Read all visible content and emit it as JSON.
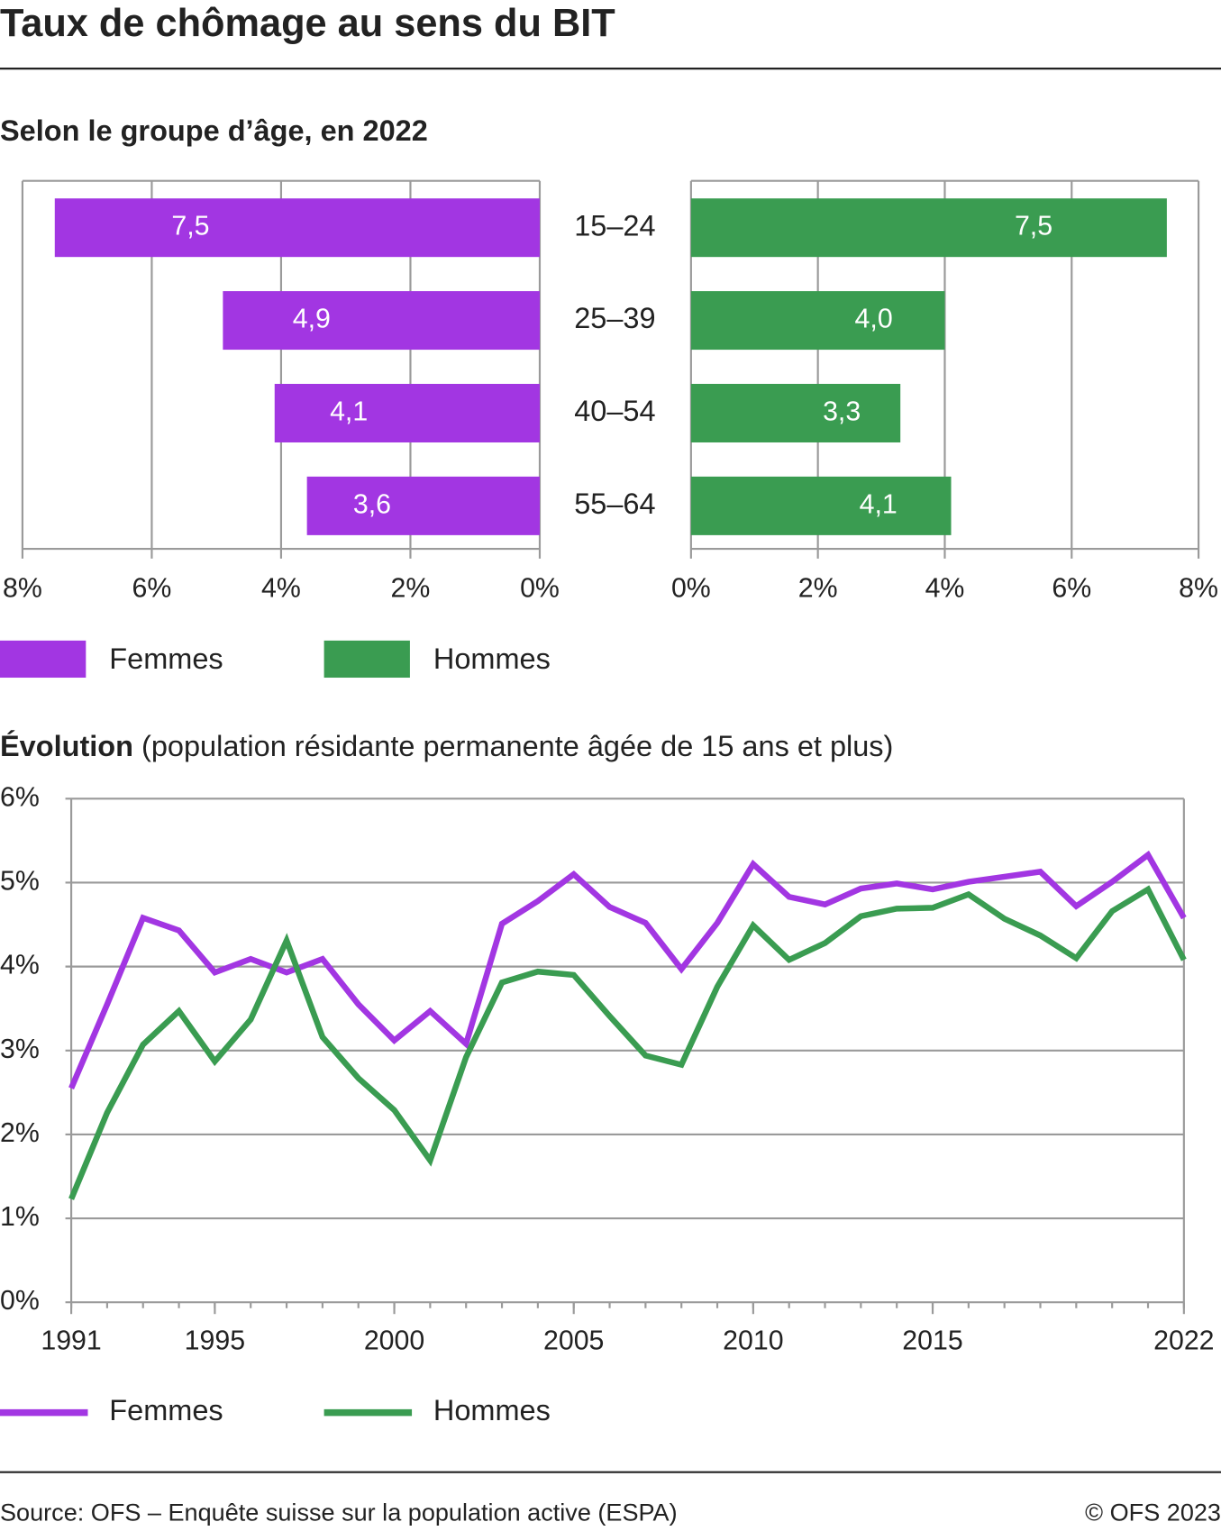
{
  "header": {
    "title": "Taux de chômage au sens du BIT"
  },
  "chart_data": [
    {
      "type": "butterfly-bar",
      "subtitle": "Selon le groupe d’âge, en 2022",
      "categories": [
        "15–24",
        "25–39",
        "40–54",
        "55–64"
      ],
      "series": [
        {
          "name": "Femmes",
          "color": "#a236e2",
          "values": [
            7.5,
            4.9,
            4.1,
            3.6
          ],
          "value_labels": [
            "7,5",
            "4,9",
            "4,1",
            "3,6"
          ]
        },
        {
          "name": "Hommes",
          "color": "#3a9c51",
          "values": [
            7.5,
            4.0,
            3.3,
            4.1
          ],
          "value_labels": [
            "7,5",
            "4,0",
            "3,3",
            "4,1"
          ]
        }
      ],
      "xlim": [
        0,
        8
      ],
      "xticks": [
        {
          "value": 0,
          "label": "0%"
        },
        {
          "value": 2,
          "label": "2%"
        },
        {
          "value": 4,
          "label": "4%"
        },
        {
          "value": 6,
          "label": "6%"
        },
        {
          "value": 8,
          "label": "8%"
        }
      ],
      "grid": true
    },
    {
      "type": "line",
      "title": "Évolution",
      "subtitle": "(population résidante permanente âgée de 15 ans et plus)",
      "x": [
        1991,
        1992,
        1993,
        1994,
        1995,
        1996,
        1997,
        1998,
        1999,
        2000,
        2001,
        2002,
        2003,
        2004,
        2005,
        2006,
        2007,
        2008,
        2009,
        2010,
        2011,
        2012,
        2013,
        2014,
        2015,
        2016,
        2017,
        2018,
        2019,
        2020,
        2021,
        2022
      ],
      "series": [
        {
          "name": "Femmes",
          "color": "#a236e2",
          "values": [
            2.55,
            3.55,
            4.58,
            4.43,
            3.93,
            4.09,
            3.93,
            4.09,
            3.55,
            3.12,
            3.47,
            3.08,
            4.51,
            4.78,
            5.1,
            4.71,
            4.52,
            3.97,
            4.52,
            5.22,
            4.83,
            4.74,
            4.93,
            4.99,
            4.92,
            5.01,
            5.07,
            5.13,
            4.72,
            5.01,
            5.33,
            4.58
          ]
        },
        {
          "name": "Hommes",
          "color": "#3a9c51",
          "values": [
            1.23,
            2.26,
            3.07,
            3.47,
            2.87,
            3.37,
            4.31,
            3.16,
            2.67,
            2.29,
            1.69,
            2.92,
            3.81,
            3.94,
            3.9,
            3.41,
            2.94,
            2.83,
            3.76,
            4.49,
            4.08,
            4.28,
            4.6,
            4.69,
            4.7,
            4.86,
            4.57,
            4.37,
            4.1,
            4.66,
            4.92,
            4.08
          ]
        }
      ],
      "xlim": [
        1991,
        2022
      ],
      "xticks": [
        1991,
        1995,
        2000,
        2005,
        2010,
        2015,
        2022
      ],
      "ylim": [
        0,
        6
      ],
      "yticks": [
        {
          "value": 0,
          "label": "0%"
        },
        {
          "value": 1,
          "label": "1%"
        },
        {
          "value": 2,
          "label": "2%"
        },
        {
          "value": 3,
          "label": "3%"
        },
        {
          "value": 4,
          "label": "4%"
        },
        {
          "value": 5,
          "label": "5%"
        },
        {
          "value": 6,
          "label": "6%"
        }
      ],
      "grid": true
    }
  ],
  "footer": {
    "source": "Source: OFS – Enquête suisse sur la population active (ESPA)",
    "copyright": "© OFS 2023"
  }
}
